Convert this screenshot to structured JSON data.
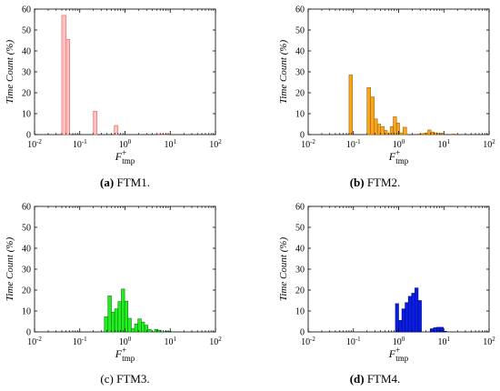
{
  "figure": {
    "panels": [
      {
        "label": "(a)",
        "text": "FTM1."
      },
      {
        "label": "(b)",
        "text": "FTM2."
      },
      {
        "label": "(c)",
        "text": "FTM3."
      },
      {
        "label": "(d)",
        "text": "FTM4."
      }
    ]
  },
  "chart_data": [
    {
      "type": "bar",
      "subtype": "histogram",
      "xscale": "log",
      "xlim": [
        0.01,
        100
      ],
      "ylim": [
        0,
        60
      ],
      "xticks": [
        "10^-2",
        "10^-1",
        "10^0",
        "10^1",
        "10^2"
      ],
      "yticks": [
        "0",
        "10",
        "20",
        "30",
        "40",
        "50",
        "60"
      ],
      "xlabel": "F+tmp",
      "ylabel": "Time Count (%)",
      "color": "#ffc0c0",
      "stroke": "#e06060",
      "bins": [
        {
          "x0": 0.04,
          "x1": 0.05,
          "value": 57
        },
        {
          "x0": 0.05,
          "x1": 0.06,
          "value": 45.5
        },
        {
          "x0": 0.2,
          "x1": 0.24,
          "value": 11.2
        },
        {
          "x0": 0.58,
          "x1": 0.7,
          "value": 4.3
        },
        {
          "x0": 5.0,
          "x1": 6.0,
          "value": 0.3
        },
        {
          "x0": 6.0,
          "x1": 7.0,
          "value": 0.3
        },
        {
          "x0": 7.0,
          "x1": 8.0,
          "value": 0.3
        },
        {
          "x0": 8.0,
          "x1": 9.0,
          "value": 0.3
        }
      ]
    },
    {
      "type": "bar",
      "subtype": "histogram",
      "xscale": "log",
      "xlim": [
        0.01,
        100
      ],
      "ylim": [
        0,
        60
      ],
      "xticks": [
        "10^-2",
        "10^-1",
        "10^0",
        "10^1",
        "10^2"
      ],
      "yticks": [
        "0",
        "10",
        "20",
        "30",
        "40",
        "50",
        "60"
      ],
      "xlabel": "F+tmp",
      "ylabel": "Time Count (%)",
      "color": "#f5a623",
      "stroke": "#a86400",
      "bins": [
        {
          "x0": 0.08,
          "x1": 0.095,
          "value": 28.5
        },
        {
          "x0": 0.2,
          "x1": 0.24,
          "value": 22.5
        },
        {
          "x0": 0.24,
          "x1": 0.29,
          "value": 18
        },
        {
          "x0": 0.29,
          "x1": 0.34,
          "value": 7.5
        },
        {
          "x0": 0.34,
          "x1": 0.4,
          "value": 5
        },
        {
          "x0": 0.4,
          "x1": 0.48,
          "value": 3.8
        },
        {
          "x0": 0.48,
          "x1": 0.56,
          "value": 2
        },
        {
          "x0": 0.56,
          "x1": 0.65,
          "value": 0.5
        },
        {
          "x0": 0.65,
          "x1": 0.76,
          "value": 3.8
        },
        {
          "x0": 0.76,
          "x1": 0.9,
          "value": 8.5
        },
        {
          "x0": 0.9,
          "x1": 1.05,
          "value": 5.5
        },
        {
          "x0": 1.05,
          "x1": 1.25,
          "value": 0.8
        },
        {
          "x0": 1.25,
          "x1": 1.5,
          "value": 3.5
        },
        {
          "x0": 2.7,
          "x1": 3.2,
          "value": 0.3
        },
        {
          "x0": 3.2,
          "x1": 3.7,
          "value": 0.5
        },
        {
          "x0": 3.7,
          "x1": 4.4,
          "value": 0.7
        },
        {
          "x0": 4.4,
          "x1": 5.2,
          "value": 2.2
        },
        {
          "x0": 5.2,
          "x1": 6.1,
          "value": 1.2
        },
        {
          "x0": 6.1,
          "x1": 7.2,
          "value": 0.8
        },
        {
          "x0": 7.2,
          "x1": 8.5,
          "value": 0.5
        },
        {
          "x0": 8.5,
          "x1": 10.0,
          "value": 0.5
        },
        {
          "x0": 15.0,
          "x1": 17.5,
          "value": 0.3
        }
      ]
    },
    {
      "type": "bar",
      "subtype": "histogram",
      "xscale": "log",
      "xlim": [
        0.01,
        100
      ],
      "ylim": [
        0,
        60
      ],
      "xticks": [
        "10^-2",
        "10^-1",
        "10^0",
        "10^1",
        "10^2"
      ],
      "yticks": [
        "0",
        "10",
        "20",
        "30",
        "40",
        "50",
        "60"
      ],
      "xlabel": "F+tmp",
      "ylabel": "Time Count (%)",
      "color": "#22ee22",
      "stroke": "#0a7a0a",
      "bins": [
        {
          "x0": 0.35,
          "x1": 0.42,
          "value": 7.2
        },
        {
          "x0": 0.42,
          "x1": 0.5,
          "value": 17.2
        },
        {
          "x0": 0.5,
          "x1": 0.59,
          "value": 9.5
        },
        {
          "x0": 0.59,
          "x1": 0.7,
          "value": 11
        },
        {
          "x0": 0.7,
          "x1": 0.83,
          "value": 14.5
        },
        {
          "x0": 0.83,
          "x1": 0.98,
          "value": 20.5
        },
        {
          "x0": 0.98,
          "x1": 1.16,
          "value": 14.7
        },
        {
          "x0": 1.16,
          "x1": 1.38,
          "value": 6.5
        },
        {
          "x0": 1.38,
          "x1": 1.63,
          "value": 1.5
        },
        {
          "x0": 1.63,
          "x1": 1.93,
          "value": 3.8
        },
        {
          "x0": 1.93,
          "x1": 2.29,
          "value": 6.2
        },
        {
          "x0": 2.29,
          "x1": 2.71,
          "value": 4.7
        },
        {
          "x0": 2.71,
          "x1": 3.21,
          "value": 3.2
        },
        {
          "x0": 3.21,
          "x1": 3.8,
          "value": 1.2
        },
        {
          "x0": 4.5,
          "x1": 5.33,
          "value": 1.2
        },
        {
          "x0": 5.33,
          "x1": 6.3,
          "value": 0.8
        },
        {
          "x0": 7.5,
          "x1": 8.9,
          "value": 0.3
        },
        {
          "x0": 8.9,
          "x1": 10.5,
          "value": 0.3
        }
      ]
    },
    {
      "type": "bar",
      "subtype": "histogram",
      "xscale": "log",
      "xlim": [
        0.01,
        100
      ],
      "ylim": [
        0,
        60
      ],
      "xticks": [
        "10^-2",
        "10^-1",
        "10^0",
        "10^1",
        "10^2"
      ],
      "yticks": [
        "0",
        "10",
        "20",
        "30",
        "40",
        "50",
        "60"
      ],
      "xlabel": "F+tmp",
      "ylabel": "Time Count (%)",
      "color": "#0a1ee6",
      "stroke": "#000a80",
      "bins": [
        {
          "x0": 0.85,
          "x1": 1.0,
          "value": 13.5
        },
        {
          "x0": 1.0,
          "x1": 1.18,
          "value": 5.5
        },
        {
          "x0": 1.18,
          "x1": 1.39,
          "value": 11
        },
        {
          "x0": 1.39,
          "x1": 1.64,
          "value": 14
        },
        {
          "x0": 1.64,
          "x1": 1.94,
          "value": 17
        },
        {
          "x0": 1.94,
          "x1": 2.29,
          "value": 18.5
        },
        {
          "x0": 2.29,
          "x1": 2.7,
          "value": 21
        },
        {
          "x0": 2.7,
          "x1": 3.19,
          "value": 15
        },
        {
          "x0": 5.0,
          "x1": 5.9,
          "value": 1.5
        },
        {
          "x0": 5.9,
          "x1": 6.97,
          "value": 2
        },
        {
          "x0": 6.97,
          "x1": 8.23,
          "value": 2.2
        },
        {
          "x0": 8.23,
          "x1": 9.72,
          "value": 2.2
        },
        {
          "x0": 9.72,
          "x1": 11.5,
          "value": 0.3
        }
      ]
    }
  ]
}
